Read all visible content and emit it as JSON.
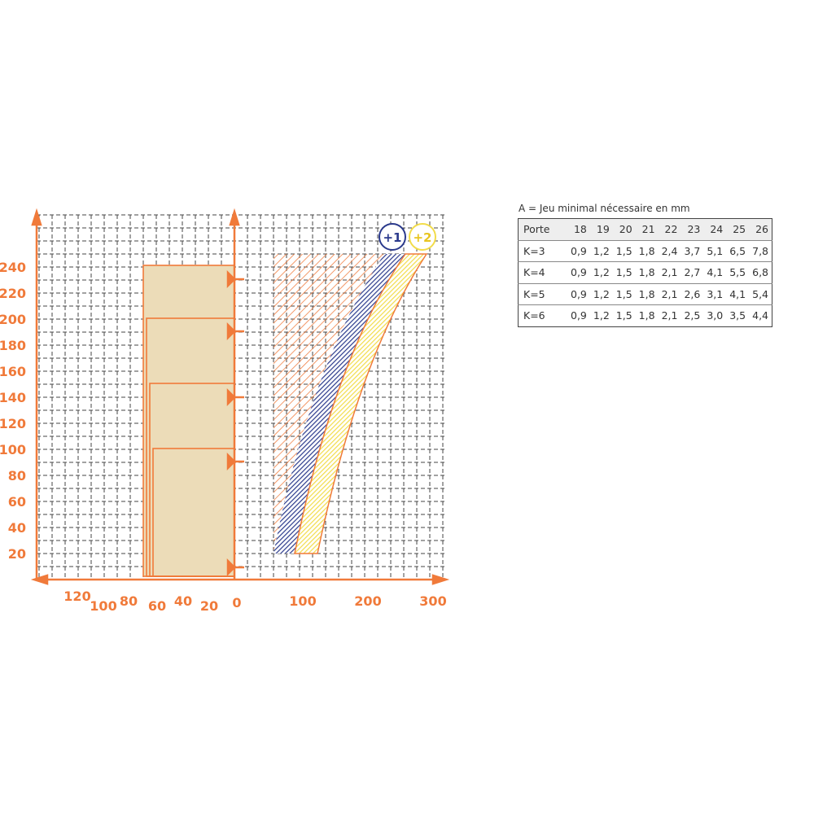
{
  "axes": {
    "y_labels": [
      "240",
      "220",
      "200",
      "180",
      "160",
      "140",
      "120",
      "100",
      "80",
      "60",
      "40",
      "20"
    ],
    "x_left_labels": [
      "120",
      "100",
      "80",
      "60",
      "40",
      "20",
      "0"
    ],
    "x_right_labels": [
      "100",
      "200",
      "300"
    ]
  },
  "badges": [
    "+1",
    "+2"
  ],
  "table": {
    "caption": "A = Jeu minimal nécessaire en mm",
    "header": [
      "Porte",
      "18",
      "19",
      "20",
      "21",
      "22",
      "23",
      "24",
      "25",
      "26"
    ],
    "rows": [
      [
        "K=3",
        "0,9",
        "1,2",
        "1,5",
        "1,8",
        "2,4",
        "3,7",
        "5,1",
        "6,5",
        "7,8"
      ],
      [
        "K=4",
        "0,9",
        "1,2",
        "1,5",
        "1,8",
        "2,1",
        "2,7",
        "4,1",
        "5,5",
        "6,8"
      ],
      [
        "K=5",
        "0,9",
        "1,2",
        "1,5",
        "1,8",
        "2,1",
        "2,6",
        "3,1",
        "4,1",
        "5,4"
      ],
      [
        "K=6",
        "0,9",
        "1,2",
        "1,5",
        "1,8",
        "2,1",
        "2,5",
        "3,0",
        "3,5",
        "4,4"
      ]
    ]
  }
}
